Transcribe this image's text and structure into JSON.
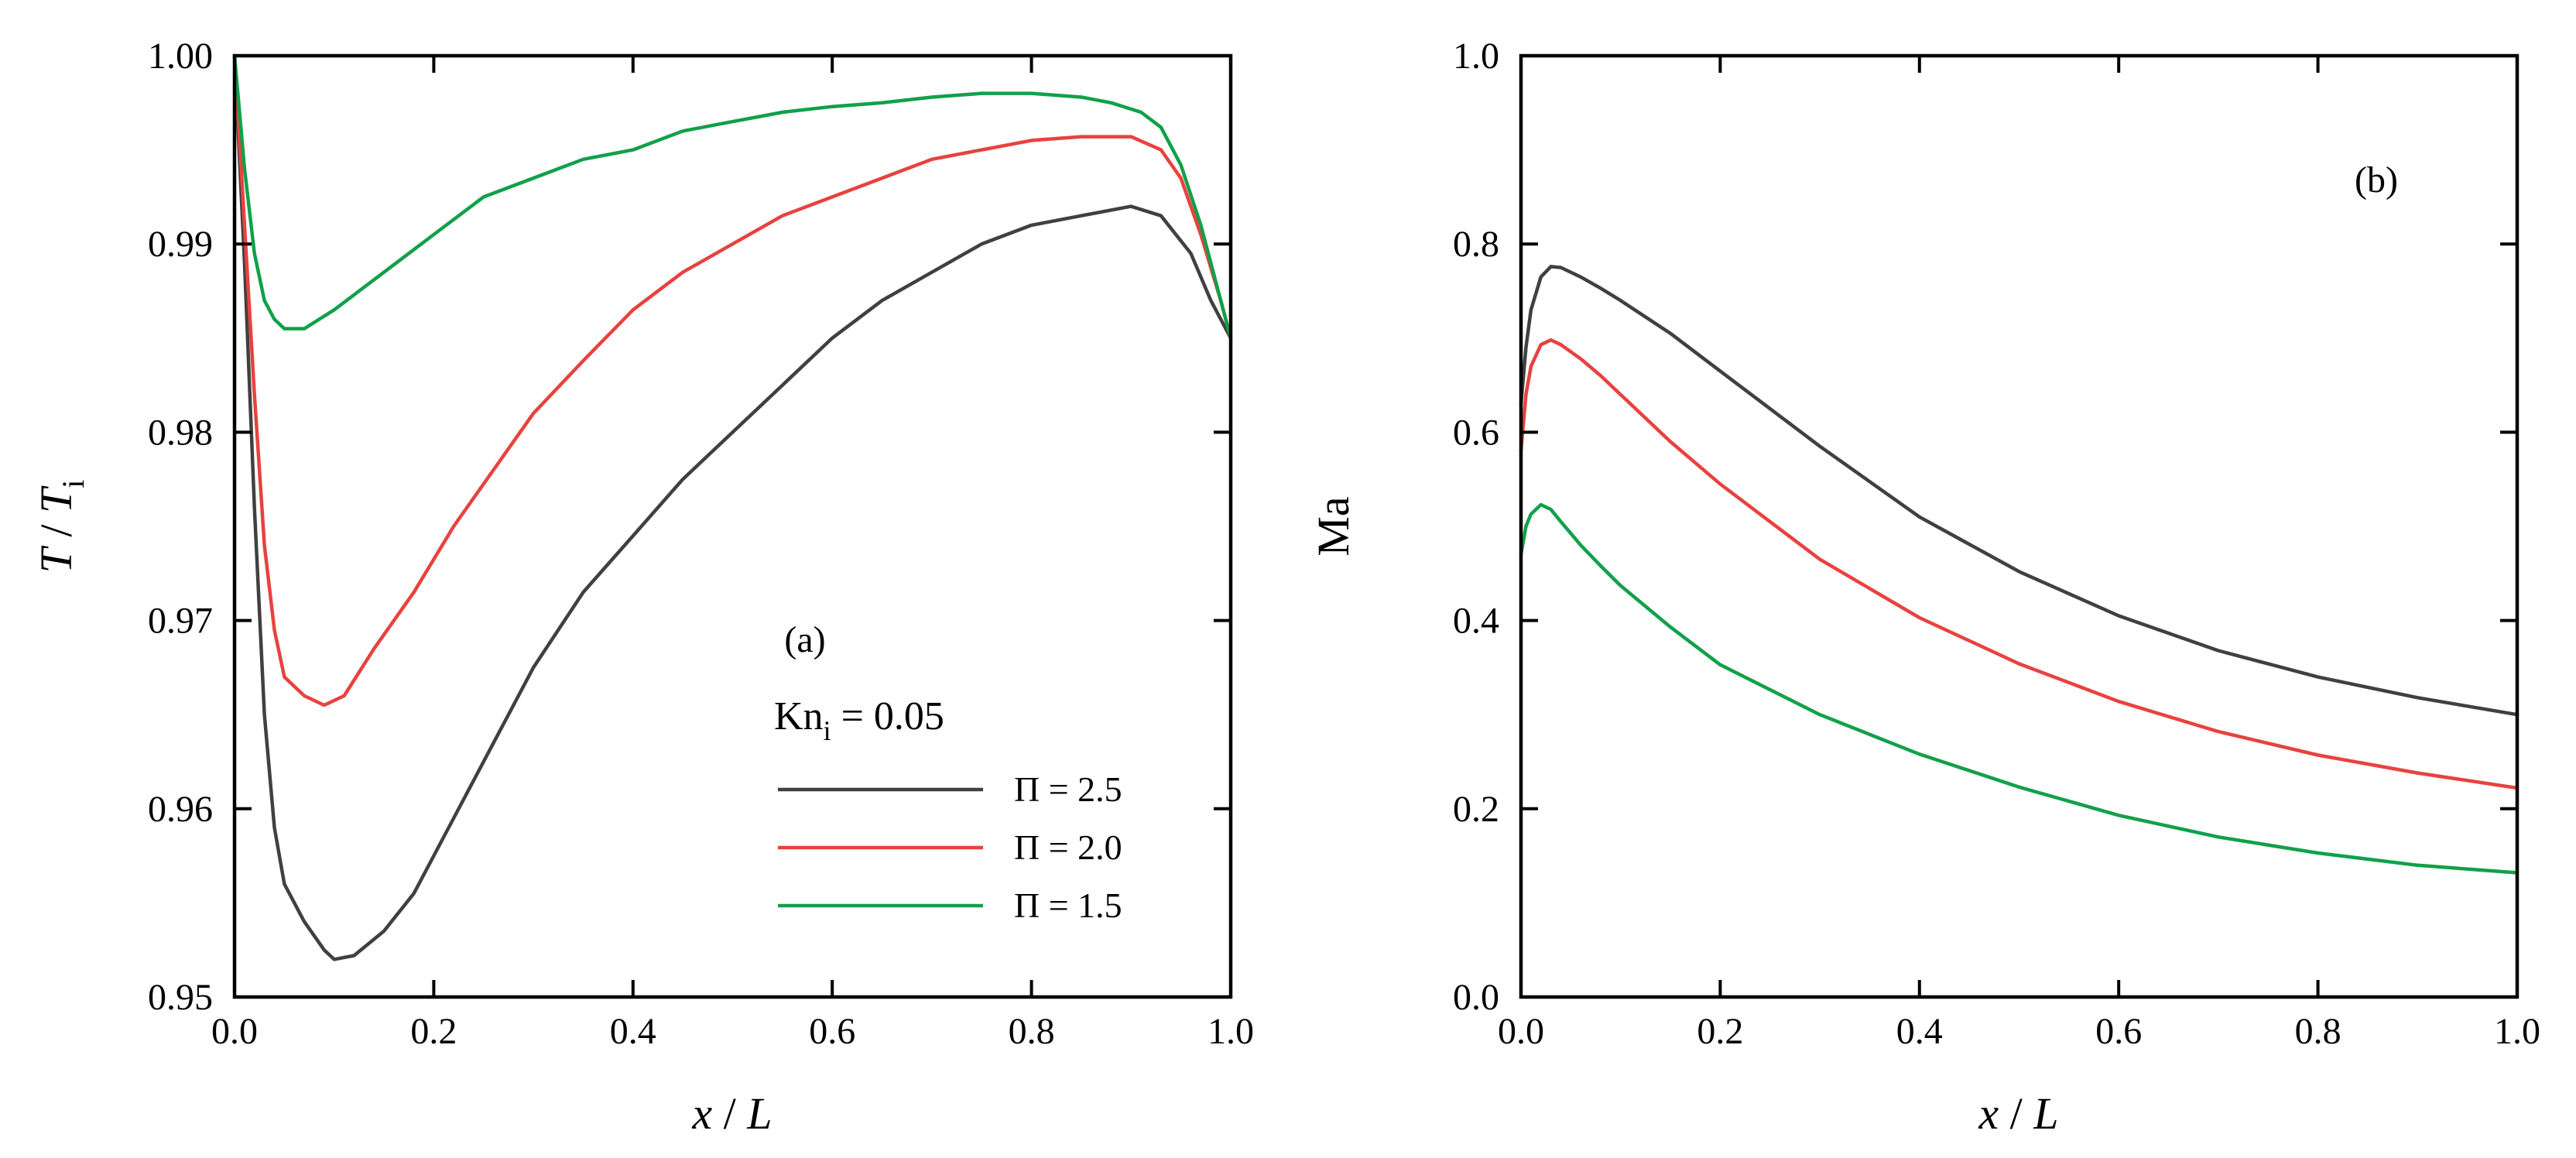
{
  "colors": {
    "pi25": "#404040",
    "pi20": "#e8423f",
    "pi15": "#12a04a",
    "axis": "#000000"
  },
  "chart_data": [
    {
      "panel": "(a)",
      "type": "line",
      "xlabel_italic": "x",
      "xlabel_sep": " / ",
      "xlabel_unit": "L",
      "ylabel_italic": "T",
      "ylabel_sep": " / ",
      "ylabel_sub_base": "T",
      "ylabel_sub": "i",
      "xlim": [
        0.0,
        1.0
      ],
      "ylim": [
        0.95,
        1.0
      ],
      "xticks": [
        "0.0",
        "0.2",
        "0.4",
        "0.6",
        "0.8",
        "1.0"
      ],
      "yticks": [
        "0.95",
        "0.96",
        "0.97",
        "0.98",
        "0.99",
        "1.00"
      ],
      "annotation_kn": "Kn",
      "annotation_kn_sub": "i",
      "annotation_kn_value": " = 0.05",
      "legend_position": "center-right",
      "series": [
        {
          "name": "Π = 2.5",
          "color_key": "pi25",
          "x": [
            0.0,
            0.01,
            0.02,
            0.03,
            0.04,
            0.05,
            0.07,
            0.09,
            0.1,
            0.12,
            0.15,
            0.18,
            0.22,
            0.26,
            0.3,
            0.35,
            0.4,
            0.45,
            0.5,
            0.55,
            0.6,
            0.65,
            0.7,
            0.75,
            0.8,
            0.85,
            0.9,
            0.93,
            0.96,
            0.98,
            1.0
          ],
          "y": [
            1.0,
            0.989,
            0.976,
            0.965,
            0.959,
            0.956,
            0.954,
            0.9525,
            0.952,
            0.9522,
            0.9535,
            0.9555,
            0.9595,
            0.9635,
            0.9675,
            0.9715,
            0.9745,
            0.9775,
            0.98,
            0.9825,
            0.985,
            0.987,
            0.9885,
            0.99,
            0.991,
            0.9915,
            0.992,
            0.9915,
            0.9895,
            0.987,
            0.985
          ]
        },
        {
          "name": "Π = 2.0",
          "color_key": "pi20",
          "x": [
            0.0,
            0.01,
            0.02,
            0.03,
            0.04,
            0.05,
            0.07,
            0.09,
            0.11,
            0.14,
            0.18,
            0.22,
            0.26,
            0.3,
            0.35,
            0.4,
            0.45,
            0.5,
            0.55,
            0.6,
            0.65,
            0.7,
            0.75,
            0.8,
            0.85,
            0.9,
            0.93,
            0.95,
            0.97,
            0.99,
            1.0
          ],
          "y": [
            1.0,
            0.991,
            0.982,
            0.974,
            0.9695,
            0.967,
            0.966,
            0.9655,
            0.966,
            0.9685,
            0.9715,
            0.975,
            0.978,
            0.981,
            0.9838,
            0.9865,
            0.9885,
            0.99,
            0.9915,
            0.9925,
            0.9935,
            0.9945,
            0.995,
            0.9955,
            0.9957,
            0.9957,
            0.995,
            0.9935,
            0.9905,
            0.987,
            0.985
          ]
        },
        {
          "name": "Π = 1.5",
          "color_key": "pi15",
          "x": [
            0.0,
            0.01,
            0.02,
            0.03,
            0.04,
            0.05,
            0.07,
            0.1,
            0.15,
            0.2,
            0.25,
            0.3,
            0.35,
            0.4,
            0.45,
            0.5,
            0.55,
            0.6,
            0.65,
            0.7,
            0.75,
            0.8,
            0.85,
            0.88,
            0.91,
            0.93,
            0.95,
            0.97,
            0.99,
            1.0
          ],
          "y": [
            1.0,
            0.994,
            0.9895,
            0.987,
            0.986,
            0.9855,
            0.9855,
            0.9865,
            0.9885,
            0.9905,
            0.9925,
            0.9935,
            0.9945,
            0.995,
            0.996,
            0.9965,
            0.997,
            0.9973,
            0.9975,
            0.9978,
            0.998,
            0.998,
            0.9978,
            0.9975,
            0.997,
            0.9962,
            0.9942,
            0.991,
            0.987,
            0.985
          ]
        }
      ]
    },
    {
      "panel": "(b)",
      "type": "line",
      "xlabel_italic": "x",
      "xlabel_sep": " / ",
      "xlabel_unit": "L",
      "ylabel": "Ma",
      "xlim": [
        0.0,
        1.0
      ],
      "ylim": [
        0.0,
        1.0
      ],
      "xticks": [
        "0.0",
        "0.2",
        "0.4",
        "0.6",
        "0.8",
        "1.0"
      ],
      "yticks": [
        "0.0",
        "0.2",
        "0.4",
        "0.6",
        "0.8",
        "1.0"
      ],
      "series": [
        {
          "name": "Π = 2.5",
          "color_key": "pi25",
          "x": [
            0.0,
            0.005,
            0.01,
            0.02,
            0.03,
            0.04,
            0.06,
            0.08,
            0.1,
            0.15,
            0.2,
            0.3,
            0.4,
            0.5,
            0.6,
            0.7,
            0.8,
            0.9,
            1.0
          ],
          "y": [
            0.63,
            0.69,
            0.73,
            0.765,
            0.776,
            0.775,
            0.765,
            0.753,
            0.74,
            0.705,
            0.665,
            0.585,
            0.51,
            0.452,
            0.405,
            0.368,
            0.34,
            0.318,
            0.3
          ]
        },
        {
          "name": "Π = 2.0",
          "color_key": "pi20",
          "x": [
            0.0,
            0.005,
            0.01,
            0.02,
            0.03,
            0.04,
            0.06,
            0.08,
            0.1,
            0.15,
            0.2,
            0.3,
            0.4,
            0.5,
            0.6,
            0.7,
            0.8,
            0.9,
            1.0
          ],
          "y": [
            0.58,
            0.64,
            0.67,
            0.693,
            0.698,
            0.693,
            0.678,
            0.66,
            0.64,
            0.59,
            0.545,
            0.465,
            0.403,
            0.354,
            0.314,
            0.282,
            0.257,
            0.238,
            0.222
          ]
        },
        {
          "name": "Π = 1.5",
          "color_key": "pi15",
          "x": [
            0.0,
            0.005,
            0.01,
            0.02,
            0.03,
            0.04,
            0.06,
            0.08,
            0.1,
            0.15,
            0.2,
            0.3,
            0.4,
            0.5,
            0.6,
            0.7,
            0.8,
            0.9,
            1.0
          ],
          "y": [
            0.47,
            0.5,
            0.513,
            0.523,
            0.518,
            0.505,
            0.48,
            0.458,
            0.437,
            0.393,
            0.353,
            0.3,
            0.258,
            0.223,
            0.193,
            0.17,
            0.153,
            0.14,
            0.132
          ]
        }
      ]
    }
  ]
}
